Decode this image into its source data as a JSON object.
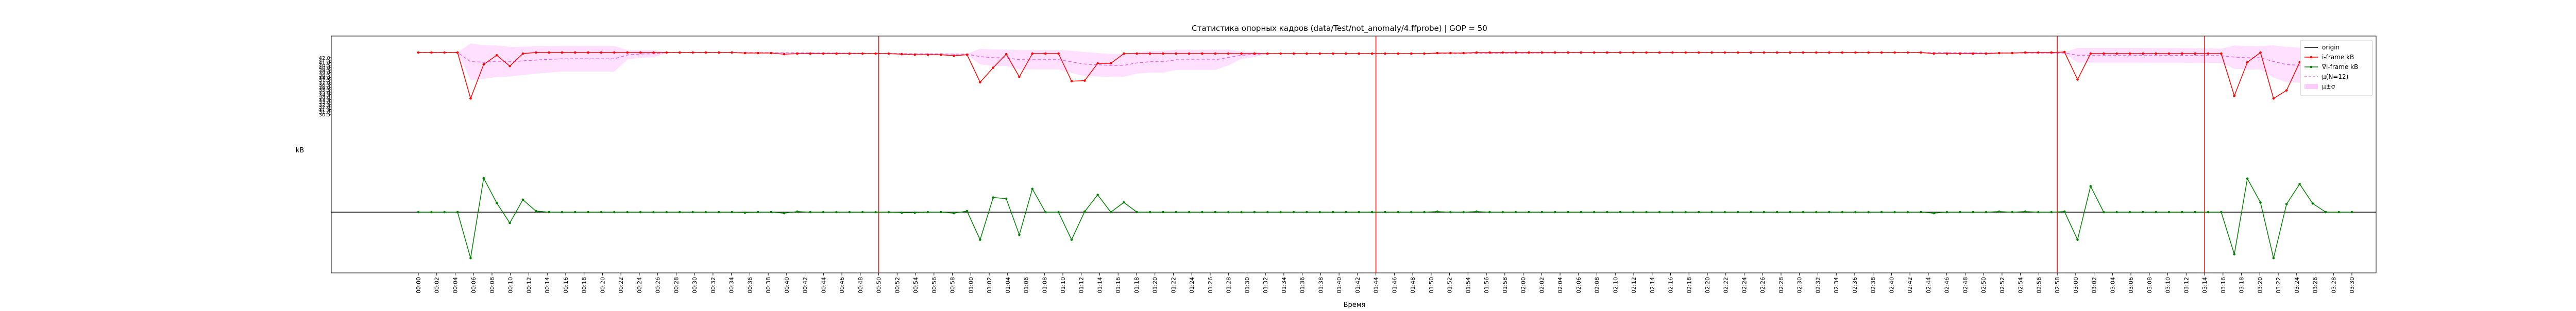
{
  "chart_data": {
    "type": "line",
    "title": "Статистика опорных кадров (data/Test/not_anomaly/4.ffprobe) | GOP = 50",
    "xlabel": "Время",
    "ylabel": "kB",
    "grid": false,
    "legend_position": "top-right",
    "x_ticks": [
      "00:00",
      "00:00",
      "00:02",
      "00:04",
      "00:06",
      "00:08",
      "00:10",
      "00:12",
      "00:14",
      "00:16",
      "00:18",
      "00:20",
      "00:22",
      "00:24",
      "00:26",
      "00:28",
      "00:30",
      "00:32",
      "00:34",
      "00:36",
      "00:38",
      "00:40",
      "00:42",
      "00:44",
      "00:46",
      "00:48",
      "00:50",
      "00:52",
      "00:54",
      "00:56",
      "00:58",
      "01:00",
      "01:02",
      "01:04",
      "01:06",
      "01:08",
      "01:10",
      "01:12",
      "01:14",
      "01:16",
      "01:18",
      "01:20",
      "01:22",
      "01:24",
      "01:26",
      "01:28",
      "01:30",
      "01:32",
      "01:34",
      "01:36",
      "01:38",
      "01:40",
      "01:42",
      "01:44",
      "01:46",
      "01:48",
      "01:50",
      "01:52",
      "01:54",
      "01:56",
      "01:58",
      "02:00",
      "02:02",
      "02:04",
      "02:06",
      "02:08",
      "02:10",
      "02:12",
      "02:14",
      "02:16",
      "02:18",
      "02:20",
      "02:22",
      "02:24",
      "02:26",
      "02:28",
      "02:30",
      "02:32",
      "02:34",
      "02:36",
      "02:38",
      "02:40",
      "02:42",
      "02:44",
      "02:46",
      "02:48",
      "02:50",
      "02:52",
      "02:54",
      "02:56",
      "02:58",
      "03:00",
      "03:02",
      "03:04",
      "03:06",
      "03:08",
      "03:10",
      "03:12",
      "03:14",
      "03:16",
      "03:18",
      "03:20",
      "03:22",
      "03:24",
      "03:26",
      "03:28",
      "03:30"
    ],
    "vertical_markers_at_tick": [
      "00:50",
      "01:44",
      "02:58",
      "03:14"
    ],
    "series": [
      {
        "name": "i-frame kB",
        "color": "#ff0000",
        "style": "line-with-dots",
        "values": [
          100,
          100,
          100,
          100,
          15,
          78,
          95,
          75,
          98,
          100,
          100,
          100,
          100,
          100,
          100,
          100,
          100,
          100,
          100,
          100,
          100,
          100,
          100,
          100,
          100,
          99,
          99,
          99,
          97,
          98,
          98,
          98,
          98,
          98,
          98,
          98,
          98,
          97,
          96,
          96,
          96,
          94,
          96,
          45,
          72,
          97,
          55,
          98,
          98,
          98,
          47,
          48,
          80,
          80,
          98,
          98,
          98,
          98,
          98,
          98,
          98,
          98,
          98,
          98,
          98,
          98,
          98,
          98,
          98,
          98,
          98,
          98,
          98,
          98,
          98,
          98,
          98,
          98,
          99,
          99,
          99,
          100,
          100,
          100,
          100,
          100,
          100,
          100,
          100,
          100,
          100,
          100,
          100,
          100,
          100,
          100,
          100,
          100,
          100,
          100,
          100,
          100,
          100,
          100,
          100,
          100,
          100,
          100,
          100,
          100,
          100,
          100,
          100,
          100,
          100,
          100,
          98,
          98,
          98,
          98,
          98,
          99,
          99,
          100,
          100,
          100,
          101,
          50,
          98,
          98,
          98,
          98,
          98,
          98,
          98,
          98,
          98,
          98,
          98,
          20,
          82,
          100,
          15,
          30,
          82,
          98,
          98,
          98,
          98
        ]
      },
      {
        "name": "∇i-frame kB",
        "color": "#008000",
        "style": "line-with-dots",
        "values": [
          0,
          0,
          0,
          0,
          -85,
          63,
          17,
          -20,
          23,
          2,
          0,
          0,
          0,
          0,
          0,
          0,
          0,
          0,
          0,
          0,
          0,
          0,
          0,
          0,
          0,
          -1,
          0,
          0,
          -2,
          1,
          0,
          0,
          0,
          0,
          0,
          0,
          0,
          -1,
          -1,
          0,
          0,
          -2,
          2,
          -51,
          27,
          25,
          -42,
          43,
          0,
          0,
          -51,
          1,
          32,
          0,
          18,
          0,
          0,
          0,
          0,
          0,
          0,
          0,
          0,
          0,
          0,
          0,
          0,
          0,
          0,
          0,
          0,
          0,
          0,
          0,
          0,
          0,
          0,
          0,
          1,
          0,
          0,
          1,
          0,
          0,
          0,
          0,
          0,
          0,
          0,
          0,
          0,
          0,
          0,
          0,
          0,
          0,
          0,
          0,
          0,
          0,
          0,
          0,
          0,
          0,
          0,
          0,
          0,
          0,
          0,
          0,
          0,
          0,
          0,
          0,
          0,
          0,
          -2,
          0,
          0,
          0,
          0,
          1,
          0,
          1,
          0,
          0,
          1,
          -51,
          48,
          0,
          0,
          0,
          0,
          0,
          0,
          0,
          0,
          0,
          0,
          -78,
          62,
          18,
          -85,
          15,
          52,
          16,
          0,
          0,
          0
        ]
      }
    ],
    "y_tick_labels": [
      "42.0",
      "41.5",
      "41.0",
      "40.5",
      "40.0",
      "39.5",
      "39.0",
      "38.5",
      "38.0",
      "37.5",
      "37.0",
      "36.5",
      "36.0",
      "35.5",
      "35.0",
      "34.5",
      "34.0",
      "33.5",
      "33.0",
      "32.5",
      "32.0",
      "31.5",
      "31.0",
      "30.5"
    ],
    "legend": [
      {
        "label": "origin",
        "style": "line",
        "color": "#000000"
      },
      {
        "label": "i-frame kB",
        "style": "line-dot",
        "color": "#ff0000"
      },
      {
        "label": "∇i-frame kB",
        "style": "line-dot",
        "color": "#008000"
      },
      {
        "label": "μ(N=12)",
        "style": "dashed",
        "color": "#e066e0"
      },
      {
        "label": "μ±σ",
        "style": "band",
        "color": "#ffccff"
      }
    ]
  }
}
